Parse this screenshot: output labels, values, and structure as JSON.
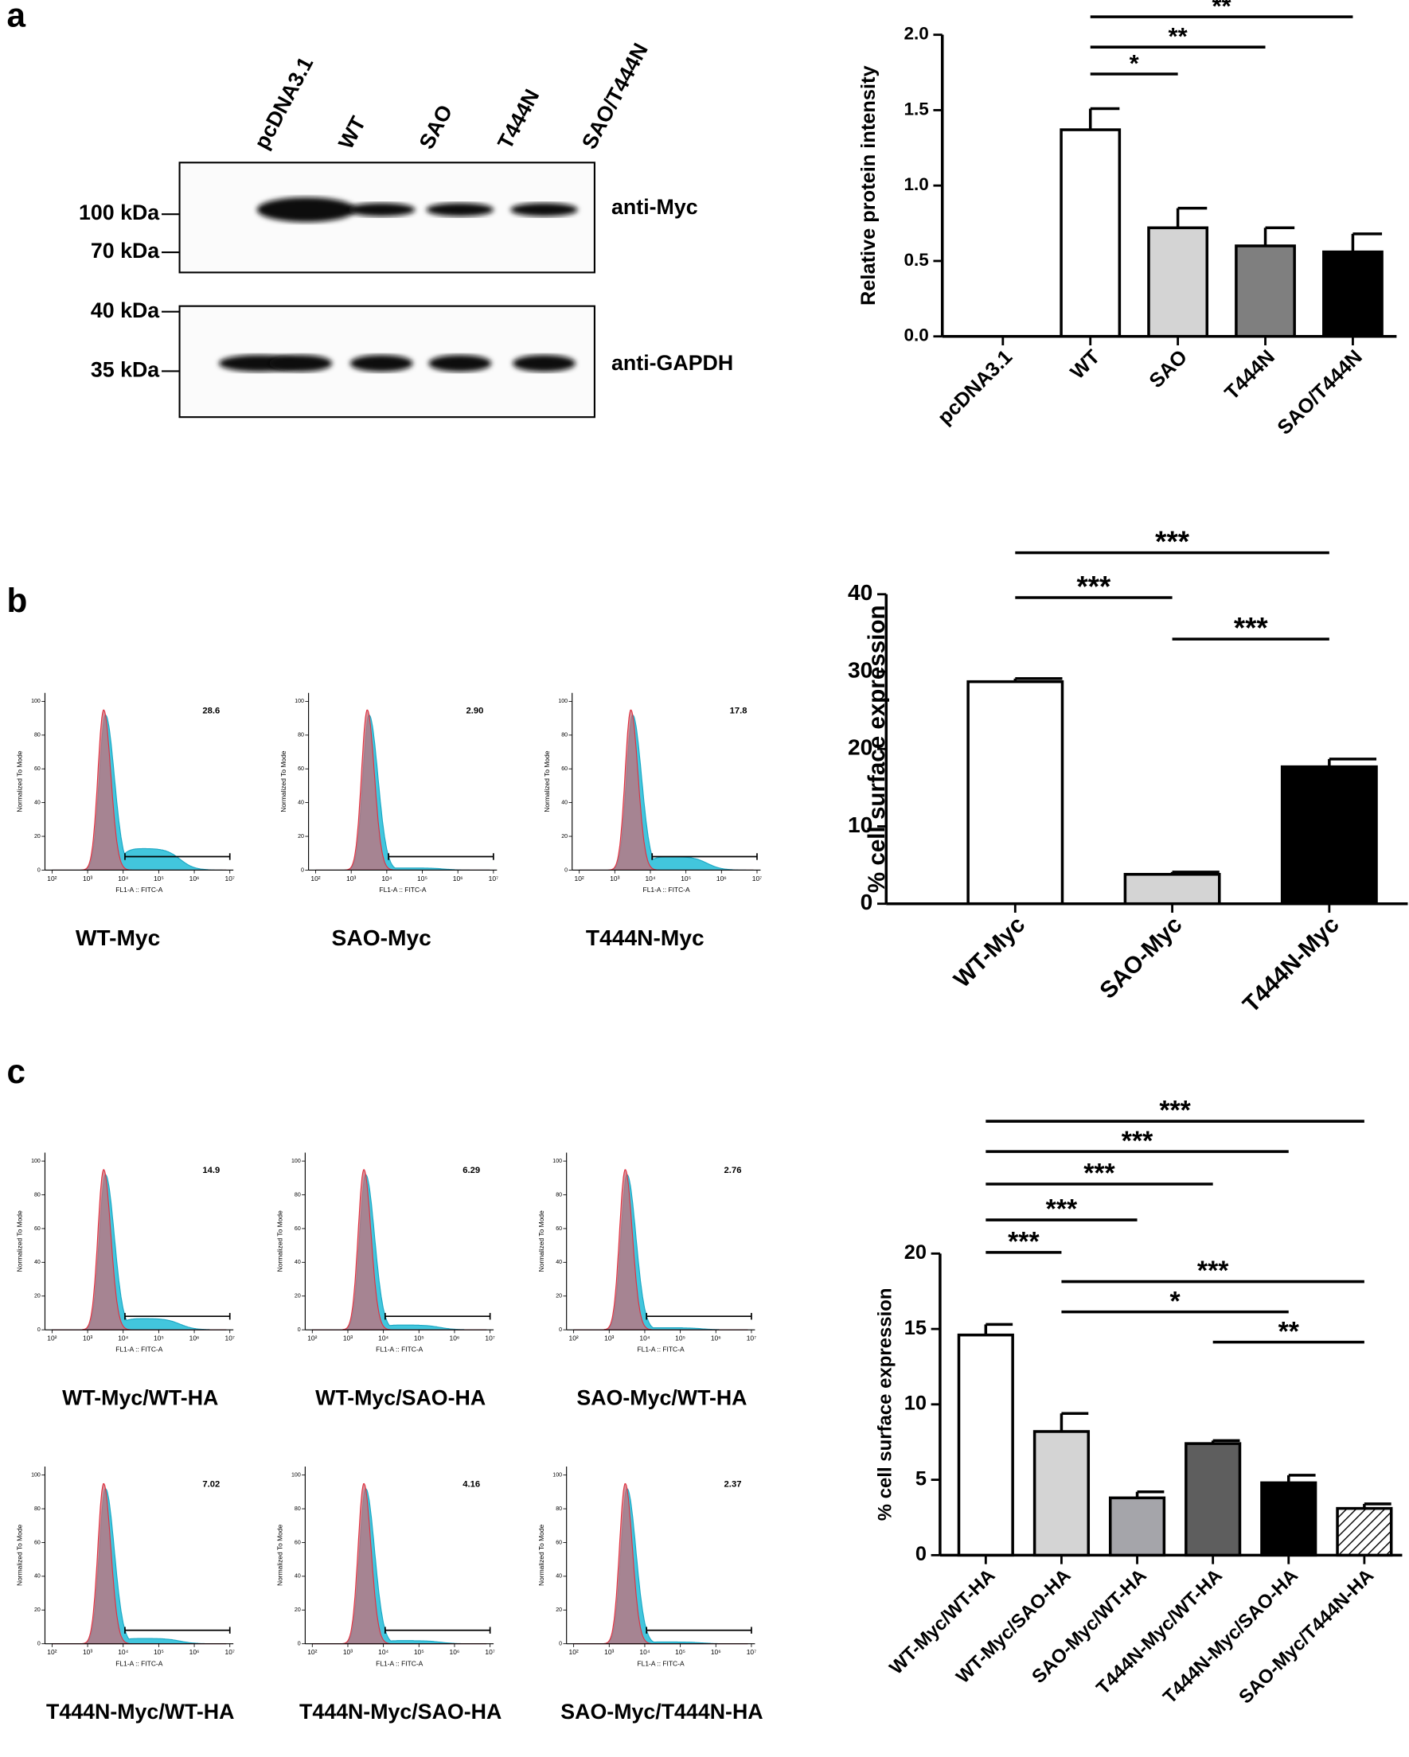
{
  "panel_labels": [
    "a",
    "b",
    "c"
  ],
  "blot": {
    "lanes": [
      "pcDNA3.1",
      "WT",
      "SAO",
      "T444N",
      "SAO/T444N"
    ],
    "markers": [
      "100 kDa",
      "70 kDa",
      "40 kDa",
      "35 kDa"
    ],
    "antibodies": [
      "anti-Myc",
      "anti-GAPDH"
    ]
  },
  "flow": {
    "y_label": "Normalized To Mode",
    "x_label": "FL1-A :: FITC-A",
    "xlim": [
      1.8,
      7.1
    ],
    "ylim": [
      0,
      105
    ],
    "yticks": [
      0,
      20,
      40,
      60,
      80,
      100
    ],
    "xticks": [
      {
        "value": 2,
        "label": "10²"
      },
      {
        "value": 3,
        "label": "10³"
      },
      {
        "value": 4,
        "label": "10⁴"
      },
      {
        "value": 5,
        "label": "10⁵"
      },
      {
        "value": 6,
        "label": "10⁶"
      },
      {
        "value": 7,
        "label": "10⁷"
      }
    ],
    "panels": [
      {
        "title": "WT-Myc",
        "percent": 28.6
      },
      {
        "title": "SAO-Myc",
        "percent": 2.9,
        "percent_label": "2.90"
      },
      {
        "title": "T444N-Myc",
        "percent": 17.8
      },
      {
        "title": "WT-Myc/WT-HA",
        "percent": 14.9
      },
      {
        "title": "WT-Myc/SAO-HA",
        "percent": 6.29
      },
      {
        "title": "SAO-Myc/WT-HA",
        "percent": 2.76
      },
      {
        "title": "T444N-Myc/WT-HA",
        "percent": 7.02
      },
      {
        "title": "T444N-Myc/SAO-HA",
        "percent": 4.16
      },
      {
        "title": "SAO-Myc/T444N-HA",
        "percent": 2.37
      }
    ]
  },
  "chart_data": [
    {
      "type": "bar",
      "y_label": "Relative protein intensity",
      "categories": [
        "pcDNA3.1",
        "WT",
        "SAO",
        "T444N",
        "SAO/T444N"
      ],
      "values": [
        0,
        1.37,
        0.72,
        0.6,
        0.56
      ],
      "errors": [
        0,
        0.14,
        0.13,
        0.12,
        0.12
      ],
      "colors": [
        "#ffffff",
        "#ffffff",
        "#d4d4d4",
        "#7f7f7f",
        "#000000"
      ],
      "ylim": [
        0,
        2
      ],
      "yticks": [
        {
          "value": 0,
          "label": "0.0"
        },
        0.5,
        {
          "value": 1,
          "label": "1.0"
        },
        1.5,
        {
          "value": 2,
          "label": "2.0"
        }
      ],
      "significance": [
        {
          "between": [
            1,
            2
          ],
          "label": "*"
        },
        {
          "between": [
            1,
            3
          ],
          "label": "**"
        },
        {
          "between": [
            1,
            4
          ],
          "label": "**"
        }
      ]
    },
    {
      "type": "bar",
      "y_label": "% cell surface expression",
      "categories": [
        "WT-Myc",
        "SAO-Myc",
        "T444N-Myc"
      ],
      "values": [
        28.7,
        3.8,
        17.7
      ],
      "errors": [
        0.4,
        0.3,
        1.0
      ],
      "colors": [
        "#ffffff",
        "#d4d4d4",
        "#000000"
      ],
      "ylim": [
        0,
        40
      ],
      "yticks": [
        0,
        10,
        20,
        30,
        40
      ],
      "significance": [
        {
          "between": [
            1,
            2
          ],
          "label": "***"
        },
        {
          "between": [
            0,
            1
          ],
          "label": "***"
        },
        {
          "between": [
            0,
            2
          ],
          "label": "***"
        }
      ]
    },
    {
      "type": "bar",
      "y_label": "% cell surface expression",
      "categories": [
        "WT-Myc/WT-HA",
        "WT-Myc/SAO-HA",
        "SAO-Myc/WT-HA",
        "T444N-Myc/WT-HA",
        "T444N-Myc/SAO-HA",
        "SAO-Myc/T444N-HA"
      ],
      "values": [
        14.6,
        8.2,
        3.8,
        7.4,
        4.8,
        3.1
      ],
      "errors": [
        0.7,
        1.2,
        0.4,
        0.2,
        0.5,
        0.3
      ],
      "colors": [
        "#ffffff",
        "#d4d4d4",
        "#a5a5aa",
        "#5e5e5e",
        "#000000",
        "#ffffff"
      ],
      "hatch": [
        false,
        false,
        false,
        false,
        false,
        true
      ],
      "ylim": [
        0,
        20
      ],
      "yticks": [
        0,
        5,
        10,
        15,
        20
      ],
      "significance": [
        {
          "between": [
            3,
            5
          ],
          "label": "**"
        },
        {
          "between": [
            1,
            4
          ],
          "label": "*"
        },
        {
          "between": [
            1,
            5
          ],
          "label": "***"
        },
        {
          "between": [
            0,
            1
          ],
          "label": "***"
        },
        {
          "between": [
            0,
            2
          ],
          "label": "***"
        },
        {
          "between": [
            0,
            3
          ],
          "label": "***"
        },
        {
          "between": [
            0,
            4
          ],
          "label": "***"
        },
        {
          "between": [
            0,
            5
          ],
          "label": "***"
        }
      ]
    }
  ]
}
